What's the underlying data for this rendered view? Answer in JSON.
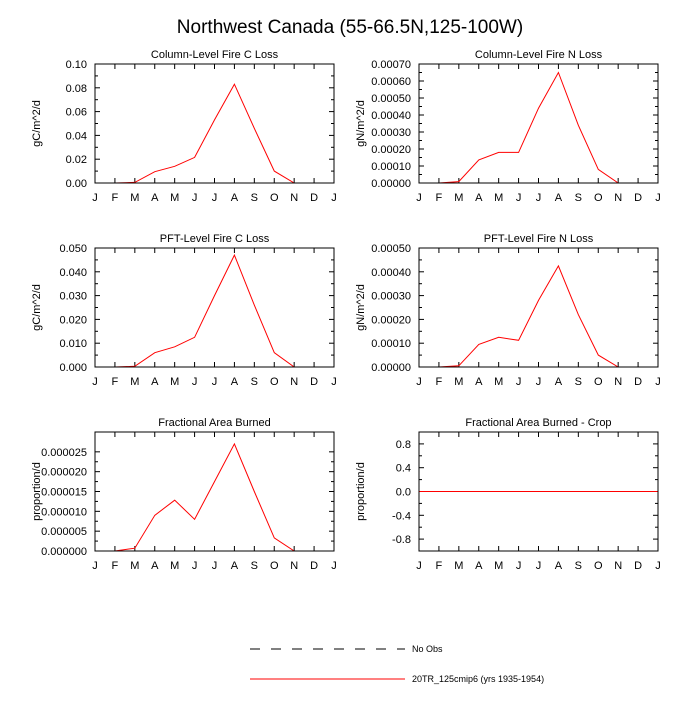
{
  "page": {
    "title": "Northwest Canada (55-66.5N,125-100W)"
  },
  "legend": [
    {
      "label": "No Obs",
      "style": "dashed",
      "color": "#000000"
    },
    {
      "label": "20TR_125cmip6 (yrs 1935-1954)",
      "style": "solid",
      "color": "#ff0000"
    }
  ],
  "chart_data": [
    {
      "type": "line",
      "title": "Column-Level Fire C Loss",
      "ylabel": "gC/m^2/d",
      "x": [
        "J",
        "F",
        "M",
        "A",
        "M",
        "J",
        "J",
        "A",
        "S",
        "O",
        "N",
        "D",
        "J"
      ],
      "ylim": [
        0,
        0.1
      ],
      "yticks": [
        0,
        0.02,
        0.04,
        0.06,
        0.08,
        0.1
      ],
      "ytick_labels": [
        "0.00",
        "0.02",
        "0.04",
        "0.06",
        "0.08",
        "0.10"
      ],
      "series": [
        {
          "color": "#ff0000",
          "values": [
            0,
            0,
            0.0005,
            0.0095,
            0.014,
            0.0215,
            0.053,
            0.083,
            0.046,
            0.01,
            0,
            0,
            0
          ]
        }
      ]
    },
    {
      "type": "line",
      "title": "Column-Level Fire N Loss",
      "ylabel": "gN/m^2/d",
      "x": [
        "J",
        "F",
        "M",
        "A",
        "M",
        "J",
        "J",
        "A",
        "S",
        "O",
        "N",
        "D",
        "J"
      ],
      "ylim": [
        0,
        0.0007
      ],
      "yticks": [
        0,
        0.0001,
        0.0002,
        0.0003,
        0.0004,
        0.0005,
        0.0006,
        0.0007
      ],
      "ytick_labels": [
        "0.00000",
        "0.00010",
        "0.00020",
        "0.00030",
        "0.00040",
        "0.00050",
        "0.00060",
        "0.00070"
      ],
      "series": [
        {
          "color": "#ff0000",
          "values": [
            0,
            0,
            8e-06,
            0.000136,
            0.00018,
            0.00018,
            0.00044,
            0.00065,
            0.00034,
            8e-05,
            0,
            0,
            0
          ]
        }
      ]
    },
    {
      "type": "line",
      "title": "PFT-Level Fire C Loss",
      "ylabel": "gC/m^2/d",
      "x": [
        "J",
        "F",
        "M",
        "A",
        "M",
        "J",
        "J",
        "A",
        "S",
        "O",
        "N",
        "D",
        "J"
      ],
      "ylim": [
        0,
        0.05
      ],
      "yticks": [
        0,
        0.01,
        0.02,
        0.03,
        0.04,
        0.05
      ],
      "ytick_labels": [
        "0.000",
        "0.010",
        "0.020",
        "0.030",
        "0.040",
        "0.050"
      ],
      "series": [
        {
          "color": "#ff0000",
          "values": [
            0,
            0,
            0.0003,
            0.006,
            0.0085,
            0.0125,
            0.03,
            0.047,
            0.026,
            0.006,
            0,
            0,
            0
          ]
        }
      ]
    },
    {
      "type": "line",
      "title": "PFT-Level Fire N Loss",
      "ylabel": "gN/m^2/d",
      "x": [
        "J",
        "F",
        "M",
        "A",
        "M",
        "J",
        "J",
        "A",
        "S",
        "O",
        "N",
        "D",
        "J"
      ],
      "ylim": [
        0,
        0.0005
      ],
      "yticks": [
        0,
        0.0001,
        0.0002,
        0.0003,
        0.0004,
        0.0005
      ],
      "ytick_labels": [
        "0.00000",
        "0.00010",
        "0.00020",
        "0.00030",
        "0.00040",
        "0.00050"
      ],
      "series": [
        {
          "color": "#ff0000",
          "values": [
            0,
            0,
            5e-06,
            9.5e-05,
            0.000125,
            0.000112,
            0.00028,
            0.000425,
            0.00022,
            5e-05,
            0,
            0,
            0
          ]
        }
      ]
    },
    {
      "type": "line",
      "title": "Fractional Area Burned",
      "ylabel": "proportion/d",
      "x": [
        "J",
        "F",
        "M",
        "A",
        "M",
        "J",
        "J",
        "A",
        "S",
        "O",
        "N",
        "D",
        "J"
      ],
      "ylim": [
        0,
        3e-05
      ],
      "yticks": [
        0,
        5e-06,
        1e-05,
        1.5e-05,
        2e-05,
        2.5e-05
      ],
      "ytick_labels": [
        "0.000000",
        "0.000005",
        "0.000010",
        "0.000015",
        "0.000020",
        "0.000025"
      ],
      "series": [
        {
          "color": "#ff0000",
          "values": [
            0,
            0,
            7e-07,
            9e-06,
            1.28e-05,
            8e-06,
            1.75e-05,
            2.7e-05,
            1.5e-05,
            3.3e-06,
            0,
            0,
            0
          ]
        }
      ]
    },
    {
      "type": "line",
      "title": "Fractional Area Burned - Crop",
      "ylabel": "proportion/d",
      "x": [
        "J",
        "F",
        "M",
        "A",
        "M",
        "J",
        "J",
        "A",
        "S",
        "O",
        "N",
        "D",
        "J"
      ],
      "ylim": [
        -1,
        1
      ],
      "yticks": [
        -0.8,
        -0.4,
        0,
        0.4,
        0.8
      ],
      "ytick_labels": [
        "-0.8",
        "-0.4",
        "0.0",
        "0.4",
        "0.8"
      ],
      "series": [
        {
          "color": "#ff0000",
          "values": [
            0,
            0,
            0,
            0,
            0,
            0,
            0,
            0,
            0,
            0,
            0,
            0,
            0
          ]
        }
      ]
    }
  ]
}
